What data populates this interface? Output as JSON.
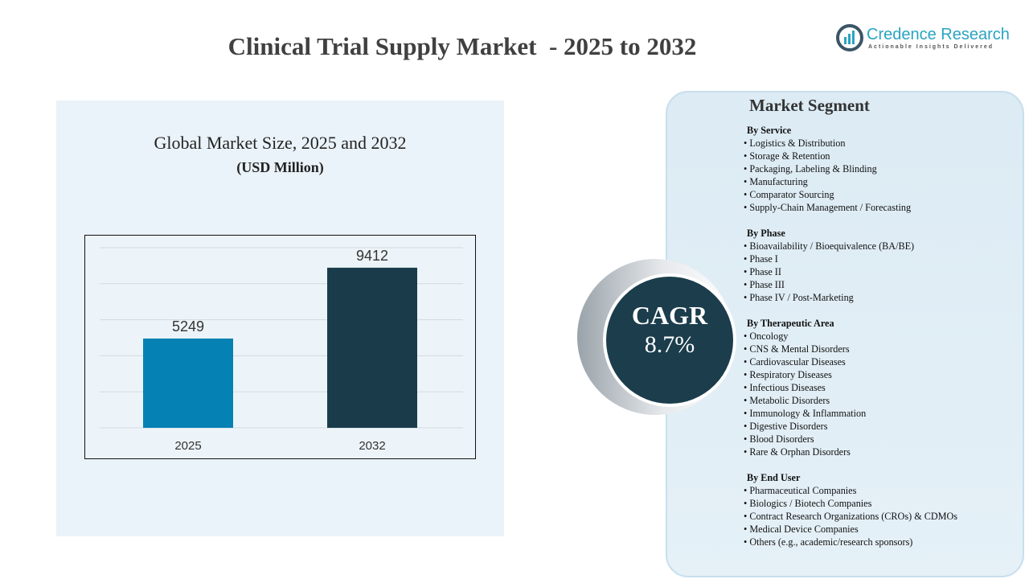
{
  "title": "Clinical Trial Supply Market  - 2025 to 2032",
  "logo": {
    "name": "Credence Research",
    "tagline": "Actionable Insights Delivered",
    "color": "#2aa3c2"
  },
  "chart_data": {
    "type": "bar",
    "title": "Global Market Size, 2025 and 2032",
    "subtitle": "(USD Million)",
    "categories": [
      "2025",
      "2032"
    ],
    "values": [
      5249,
      9412
    ],
    "colors": [
      "#0582b3",
      "#1a3c4a"
    ],
    "grid": true,
    "legend": "none"
  },
  "cagr": {
    "label": "CAGR",
    "value": "8.7%",
    "color": "#1b3d4c"
  },
  "segment": {
    "title": "Market Segment",
    "groups": [
      {
        "heading": "By Service",
        "items": [
          "Logistics & Distribution",
          "Storage & Retention",
          "Packaging, Labeling & Blinding",
          "Manufacturing",
          "Comparator Sourcing",
          "Supply-Chain Management / Forecasting"
        ]
      },
      {
        "heading": "By Phase",
        "items": [
          "Bioavailability / Bioequivalence (BA/BE)",
          "Phase I",
          "Phase II",
          "Phase III",
          "Phase IV / Post-Marketing"
        ]
      },
      {
        "heading": "By Therapeutic Area",
        "items": [
          "Oncology",
          "CNS & Mental Disorders",
          "Cardiovascular Diseases",
          "Respiratory Diseases",
          "Infectious Diseases",
          "Metabolic Disorders",
          "Immunology & Inflammation",
          "Digestive Disorders",
          "Blood Disorders",
          "Rare & Orphan Disorders"
        ]
      },
      {
        "heading": "By End User",
        "items": [
          "Pharmaceutical Companies",
          "Biologics / Biotech Companies",
          "Contract Research Organizations (CROs) & CDMOs",
          "Medical Device Companies",
          "Others (e.g., academic/research sponsors)"
        ]
      }
    ]
  }
}
